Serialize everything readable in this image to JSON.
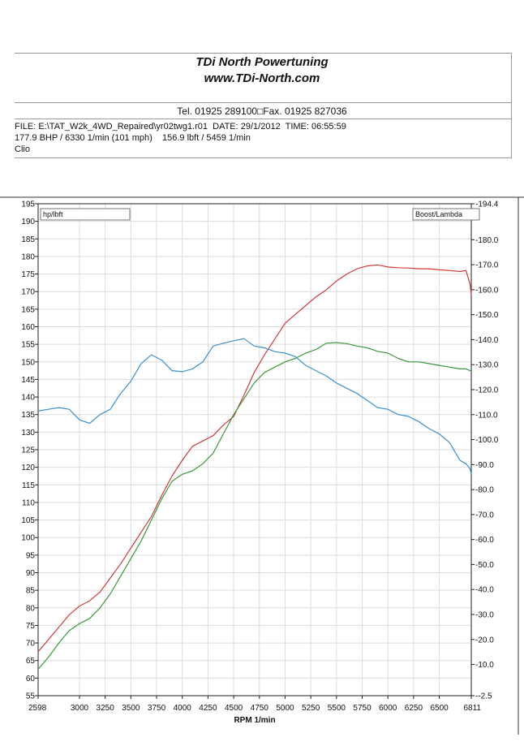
{
  "header": {
    "company": "TDi North Powertuning",
    "website": "www.TDi-North.com",
    "contact": "Tel. 01925 289100□Fax. 01925 827036",
    "file_line": "FILE: E:\\TAT_W2k_4WD_Repaired\\yr02twg1.r01  DATE: 29/1/2012  TIME: 06:55:59",
    "power_line": "177.9 BHP / 6330 1/min (101 mph)    156.9 lbft / 5459 1/min",
    "vehicle_line": "Clio"
  },
  "chart_data": {
    "type": "line",
    "xlabel": "RPM  1/min",
    "left_box_label": "hp/lbft",
    "right_box_label": "Boost/Lambda",
    "x_ticks": [
      "2598",
      "3000",
      "3250",
      "3500",
      "3750",
      "4000",
      "4250",
      "4500",
      "4750",
      "5000",
      "5250",
      "5500",
      "5750",
      "6000",
      "6250",
      "6500",
      "6811"
    ],
    "xlim": [
      2598,
      6811
    ],
    "ylim_left": [
      55,
      195
    ],
    "y_left_ticks": [
      "195",
      "190",
      "185",
      "180",
      "175",
      "170",
      "165",
      "160",
      "155",
      "150",
      "145",
      "140",
      "135",
      "130",
      "125",
      "120",
      "115",
      "110",
      "105",
      "100",
      "95",
      "90",
      "85",
      "80",
      "75",
      "70",
      "65",
      "60",
      "55"
    ],
    "ylim_right": [
      -2.5,
      194.4
    ],
    "y_right_ticks": [
      "-194.4",
      "-180.0",
      "-170.0",
      "-160.0",
      "-150.0",
      "-140.0",
      "-130.0",
      "-120.0",
      "-110.0",
      "-100.0",
      "-90.0",
      "-80.0",
      "-70.0",
      "-60.0",
      "-50.0",
      "-40.0",
      "-30.0",
      "-20.0",
      "-10.0",
      "--2.5"
    ],
    "y_right_tick_values": [
      194.4,
      180,
      170,
      160,
      150,
      140,
      130,
      120,
      110,
      100,
      90,
      80,
      70,
      60,
      50,
      40,
      30,
      20,
      10,
      -2.5
    ],
    "grid": true,
    "series": [
      {
        "color": "#d23a3a",
        "axis": "left",
        "x": [
          2598,
          2700,
          2800,
          2900,
          3000,
          3100,
          3200,
          3300,
          3400,
          3500,
          3600,
          3700,
          3800,
          3900,
          4000,
          4100,
          4200,
          4300,
          4400,
          4500,
          4600,
          4700,
          4800,
          4900,
          5000,
          5100,
          5200,
          5300,
          5400,
          5500,
          5600,
          5700,
          5800,
          5900,
          6000,
          6100,
          6200,
          6300,
          6400,
          6500,
          6600,
          6700,
          6760,
          6800,
          6811
        ],
        "y": [
          67.5,
          71,
          74.5,
          78,
          80.5,
          82,
          84.5,
          88.5,
          92.5,
          97,
          101.5,
          106,
          112,
          117.5,
          122,
          126,
          127.5,
          129,
          132,
          134.5,
          140.5,
          147,
          152,
          156.5,
          161,
          163.5,
          166,
          168.5,
          170.5,
          173,
          175,
          176.5,
          177.3,
          177.6,
          177,
          176.8,
          176.7,
          176.5,
          176.5,
          176.2,
          176,
          175.7,
          176,
          172,
          169
        ]
      },
      {
        "color": "#3a9a3a",
        "axis": "left",
        "x": [
          2598,
          2700,
          2800,
          2900,
          3000,
          3100,
          3200,
          3300,
          3400,
          3500,
          3600,
          3700,
          3800,
          3900,
          4000,
          4100,
          4200,
          4300,
          4400,
          4500,
          4600,
          4700,
          4800,
          4900,
          5000,
          5100,
          5200,
          5300,
          5400,
          5500,
          5600,
          5700,
          5800,
          5900,
          6000,
          6100,
          6200,
          6300,
          6400,
          6500,
          6600,
          6700,
          6760,
          6800,
          6811
        ],
        "y": [
          62.5,
          66,
          70,
          73.5,
          75.5,
          77,
          80,
          84,
          89,
          94,
          99,
          105,
          111,
          116,
          118,
          119,
          121,
          124,
          129.5,
          135,
          139.5,
          144,
          147,
          148.5,
          150,
          151,
          152.5,
          153.5,
          155.3,
          155.5,
          155.2,
          154.5,
          154,
          153,
          152.5,
          151,
          150,
          150,
          149.5,
          149,
          148.5,
          148,
          148,
          147.5,
          147.5
        ]
      },
      {
        "color": "#3a8fd0",
        "axis": "left",
        "x": [
          2598,
          2700,
          2800,
          2900,
          3000,
          3100,
          3200,
          3300,
          3400,
          3500,
          3600,
          3700,
          3800,
          3900,
          4000,
          4100,
          4200,
          4300,
          4400,
          4500,
          4600,
          4700,
          4800,
          4900,
          5000,
          5100,
          5200,
          5300,
          5400,
          5500,
          5600,
          5700,
          5800,
          5900,
          6000,
          6100,
          6200,
          6300,
          6400,
          6500,
          6600,
          6700,
          6760,
          6800,
          6811
        ],
        "y": [
          136,
          136.5,
          137,
          136.5,
          133.5,
          132.5,
          135,
          136.5,
          141,
          144.5,
          149.5,
          152,
          150.5,
          147.5,
          147.2,
          148,
          150,
          154.5,
          155.3,
          156,
          156.6,
          154.5,
          154,
          152.9,
          152.5,
          151.5,
          149,
          147.5,
          146,
          144,
          142.5,
          141,
          139,
          137,
          136.5,
          135,
          134.5,
          133,
          131,
          129.5,
          127,
          122,
          121,
          119.5,
          118
        ]
      }
    ]
  }
}
